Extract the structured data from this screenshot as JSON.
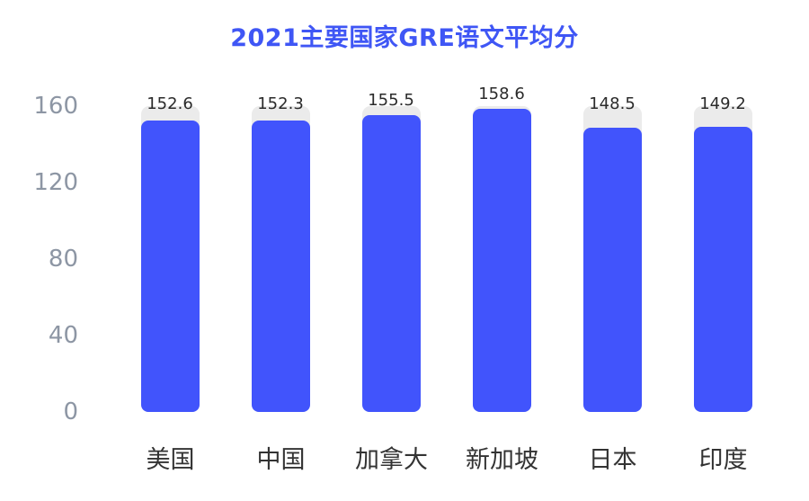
{
  "chart_data": {
    "type": "bar",
    "title": "2021主要国家GRE语文平均分",
    "categories": [
      "美国",
      "中国",
      "加拿大",
      "新加坡",
      "日本",
      "印度"
    ],
    "values": [
      152.6,
      152.3,
      155.5,
      158.6,
      148.5,
      149.2
    ],
    "value_labels": [
      "152.6",
      "152.3",
      "155.5",
      "158.6",
      "148.5",
      "149.2"
    ],
    "xlabel": "",
    "ylabel": "",
    "ylim": [
      0,
      160
    ],
    "yticks": [
      "0",
      "40",
      "80",
      "120",
      "160"
    ],
    "grid": false,
    "legend": null,
    "colors": {
      "bar": "#4154fc",
      "background_track": "#ebebeb",
      "title": "#3f56f5",
      "tick": "#8d96a4"
    }
  }
}
